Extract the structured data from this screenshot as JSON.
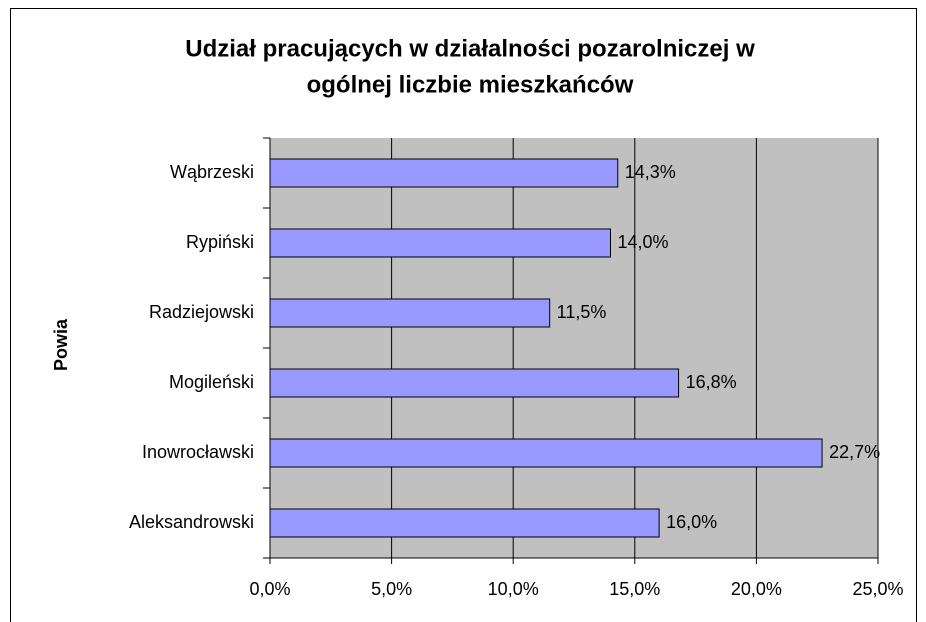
{
  "chart_data": {
    "type": "barh",
    "title": [
      "Udział pracujących w działalności pozarolniczej w",
      "ogólnej liczbie mieszkańców"
    ],
    "y_label": "Powia",
    "categories": [
      "Wąbrzeski",
      "Rypiński",
      "Radziejowski",
      "Mogileński",
      "Inowrocławski",
      "Aleksandrowski"
    ],
    "values": [
      14.3,
      14.0,
      11.5,
      16.8,
      22.7,
      16.0
    ],
    "value_labels": [
      "14,3%",
      "14,0%",
      "11,5%",
      "16,8%",
      "22,7%",
      "16,0%"
    ],
    "color": "#9999ff",
    "xlim": [
      0,
      25
    ],
    "xticks": [
      {
        "value": 0,
        "label": "0,0%"
      },
      {
        "value": 5,
        "label": "5,0%"
      },
      {
        "value": 10,
        "label": "10,0%"
      },
      {
        "value": 15,
        "label": "15,0%"
      },
      {
        "value": 20,
        "label": "20,0%"
      },
      {
        "value": 25,
        "label": "25,0%"
      }
    ],
    "grid": true
  }
}
